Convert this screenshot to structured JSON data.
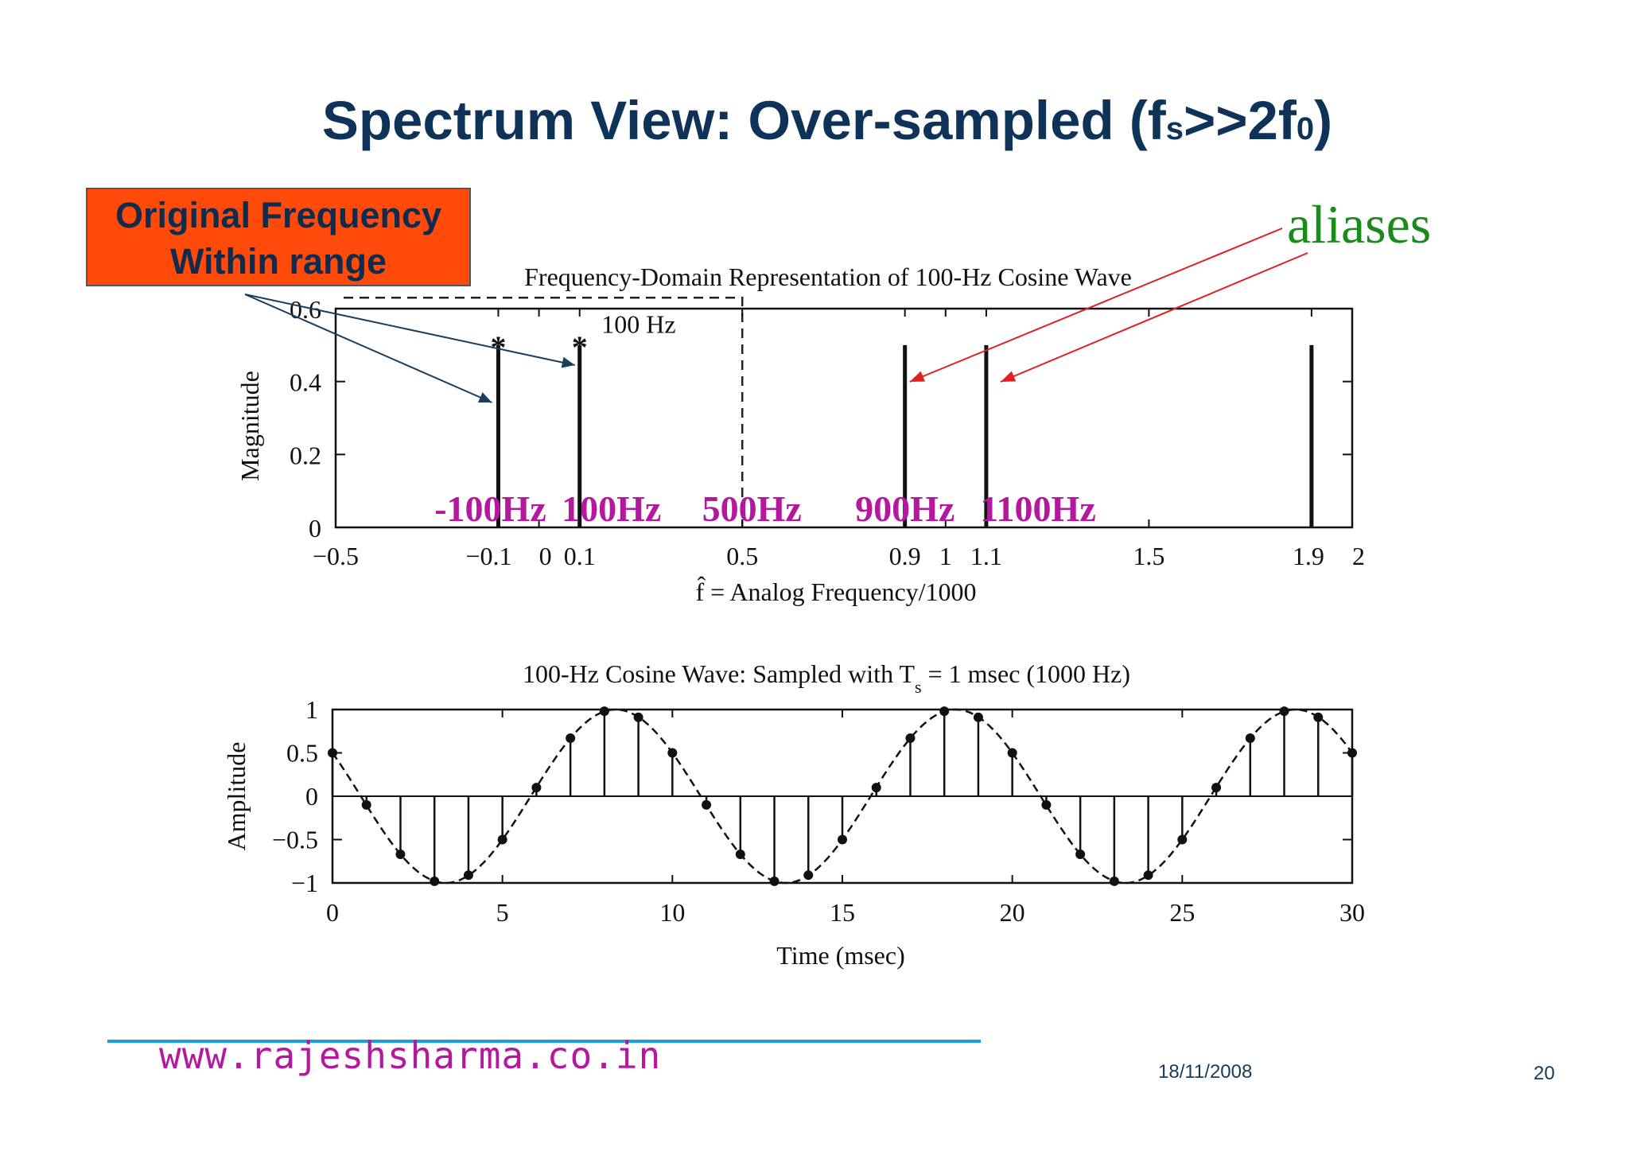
{
  "slide": {
    "title_main": "Spectrum View: Over-sampled (f",
    "title_sub1": "s",
    "title_mid": ">>2f",
    "title_sub2": "0",
    "title_end": ")",
    "callout_line1": "Original Frequency",
    "callout_line2": "Within range",
    "aliases_label": "aliases",
    "footer_url": "www.rajeshsharma.co.in",
    "footer_date": "18/11/2008",
    "page_number": "20"
  },
  "colors": {
    "title": "#0f3358",
    "callout_bg": "#ff4a0a",
    "aliases": "#1a8a1a",
    "freq_labels": "#b5179e",
    "alias_arrows": "#e02020",
    "callout_arrows": "#1a3f5e",
    "footer_line": "#1aa0e0"
  },
  "chart_data": [
    {
      "type": "stem",
      "title": "Frequency-Domain Representation of 100-Hz Cosine Wave",
      "xlabel": "f̂ = Analog Frequency/1000",
      "ylabel": "Magnitude",
      "xlim": [
        -0.5,
        2.0
      ],
      "ylim": [
        0,
        0.6
      ],
      "xticks": [
        -0.5,
        -0.1,
        0,
        0.1,
        0.5,
        0.9,
        1,
        1.1,
        1.5,
        1.9,
        2
      ],
      "xtick_labels": [
        "−0.5",
        "−0.1",
        "0",
        "0.1",
        "0.5",
        "0.9",
        "1",
        "1.1",
        "1.5",
        "1.9",
        "2"
      ],
      "yticks": [
        0,
        0.2,
        0.4,
        0.6
      ],
      "ytick_labels": [
        "0",
        "0.2",
        "0.4",
        "0.6"
      ],
      "series": [
        {
          "name": "",
          "x": [
            -0.1,
            0.1,
            0.9,
            1.1,
            1.9
          ],
          "y": [
            0.5,
            0.5,
            0.5,
            0.5,
            0.5
          ]
        }
      ],
      "star_markers": [
        -0.1,
        0.1
      ],
      "annotations": [
        {
          "text": "100 Hz",
          "x": 0.15,
          "y": 0.54
        }
      ],
      "dashed_box": {
        "x": [
          -0.5,
          0.5
        ],
        "y": [
          0,
          0.63
        ]
      },
      "freq_labels": [
        {
          "text": "-100Hz",
          "x": -0.1
        },
        {
          "text": "100Hz",
          "x": 0.1
        },
        {
          "text": "500Hz",
          "x": 0.5
        },
        {
          "text": "900Hz",
          "x": 0.9
        },
        {
          "text": "1100Hz",
          "x": 1.1
        }
      ]
    },
    {
      "type": "stem",
      "title": "100-Hz Cosine Wave: Sampled with T",
      "title_subscript": "s",
      "title_rest": " = 1 msec (1000 Hz)",
      "xlabel": "Time (msec)",
      "ylabel": "Amplitude",
      "xlim": [
        0,
        30
      ],
      "ylim": [
        -1,
        1
      ],
      "xticks": [
        0,
        5,
        10,
        15,
        20,
        25,
        30
      ],
      "xtick_labels": [
        "0",
        "5",
        "10",
        "15",
        "20",
        "25",
        "30"
      ],
      "yticks": [
        1,
        0.5,
        0,
        -0.5,
        -1
      ],
      "ytick_labels": [
        "1",
        "0.5",
        "0",
        "−0.5",
        "−1"
      ],
      "series": [
        {
          "name": "",
          "x": [
            0,
            1,
            2,
            3,
            4,
            5,
            6,
            7,
            8,
            9,
            10,
            11,
            12,
            13,
            14,
            15,
            16,
            17,
            18,
            19,
            20,
            21,
            22,
            23,
            24,
            25,
            26,
            27,
            28,
            29,
            30
          ],
          "y": [
            0.5,
            -0.1,
            -0.67,
            -0.98,
            -0.91,
            -0.5,
            0.1,
            0.67,
            0.98,
            0.91,
            0.5,
            -0.1,
            -0.67,
            -0.98,
            -0.91,
            -0.5,
            0.1,
            0.67,
            0.98,
            0.91,
            0.5,
            -0.1,
            -0.67,
            -0.98,
            -0.91,
            -0.5,
            0.1,
            0.67,
            0.98,
            0.91,
            0.5
          ]
        }
      ],
      "envelope": "dashed cosine, frequency 100 Hz, phase π/3"
    }
  ]
}
